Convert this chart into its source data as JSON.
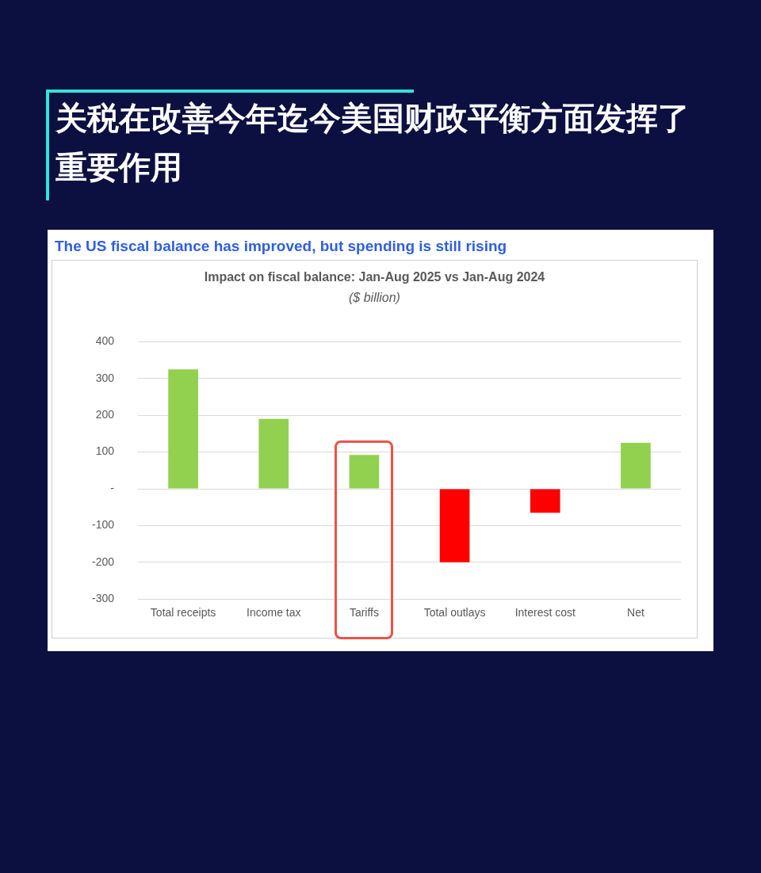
{
  "chart_data": {
    "type": "bar",
    "title": "关税在改善今年迄今美国财政平衡方面发挥了重要作用",
    "subtitle": "The US fiscal balance has improved, but spending is still rising",
    "annotations": [
      "Impact on fiscal balance: Jan-Aug 2025 vs Jan-Aug 2024",
      "($ billion)"
    ],
    "categories": [
      "Total receipts",
      "Income tax",
      "Tariffs",
      "Total outlays",
      "Interest cost",
      "Net"
    ],
    "values": [
      325,
      190,
      92,
      -200,
      -65,
      125
    ],
    "colors": [
      "#92d050",
      "#92d050",
      "#92d050",
      "#ff0000",
      "#ff0000",
      "#92d050"
    ],
    "ylim": [
      -300,
      400
    ],
    "yticks": [
      -300,
      -200,
      -100,
      {
        "value": 0,
        "label": "-"
      },
      100,
      200,
      300,
      400
    ],
    "grid": "y"
  }
}
